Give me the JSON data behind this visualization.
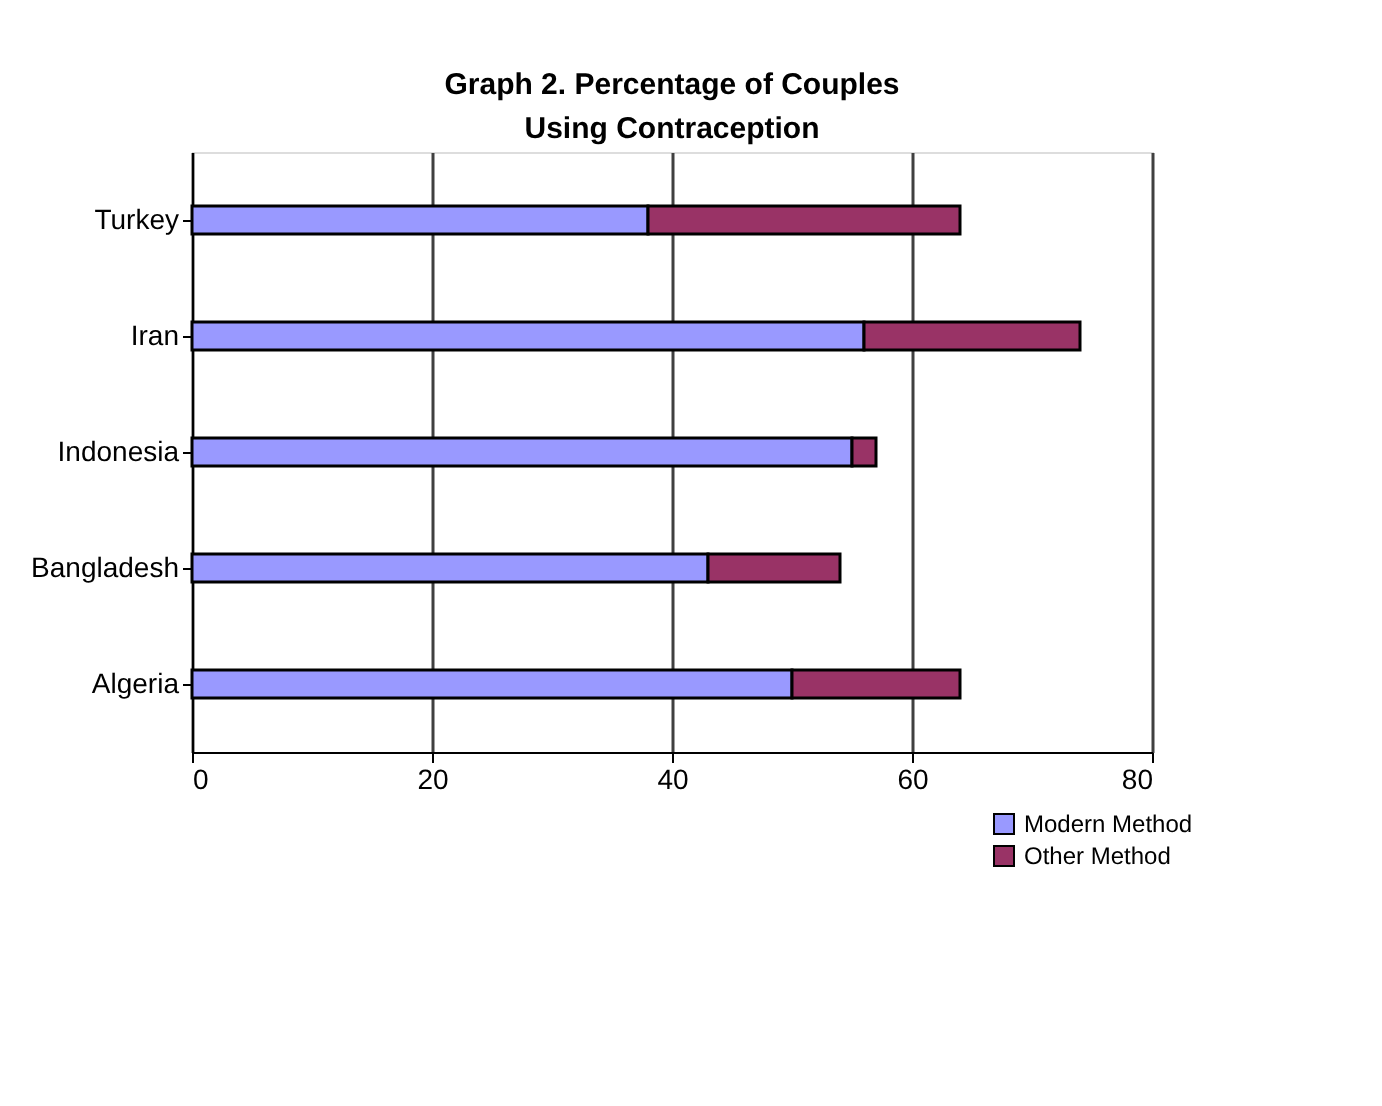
{
  "chart_data": {
    "type": "bar",
    "orientation": "horizontal",
    "stacked": true,
    "title": "Graph 2. Percentage of Couples Using Contraception",
    "categories": [
      "Turkey",
      "Iran",
      "Indonesia",
      "Bangladesh",
      "Algeria"
    ],
    "series": [
      {
        "name": "Modern Method",
        "color": "#9999ff",
        "values": [
          38,
          56,
          55,
          43,
          50
        ]
      },
      {
        "name": "Other Method",
        "color": "#993366",
        "values": [
          26,
          18,
          2,
          11,
          14
        ]
      }
    ],
    "xlim": [
      0,
      80
    ],
    "xticks": [
      0,
      20,
      40,
      60,
      80
    ],
    "grid": "x",
    "legend": "bottom right"
  }
}
